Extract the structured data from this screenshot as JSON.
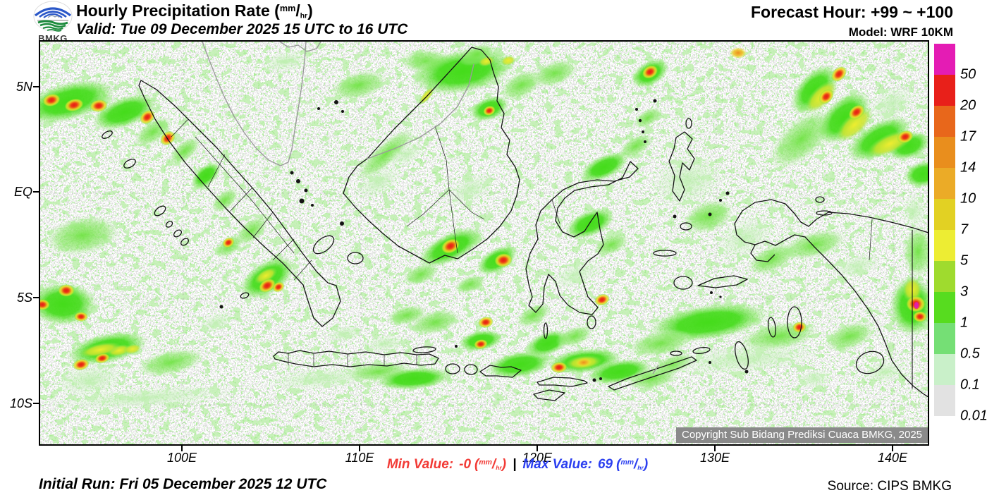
{
  "header": {
    "title": "Hourly Precipitation Rate",
    "valid": "Valid: Tue 09 December 2025 15 UTC to 16 UTC",
    "forecast_hour": "Forecast Hour: +99 ~ +100",
    "model": "Model: WRF 10KM",
    "logo_text": "BMKG"
  },
  "unit": {
    "open": "(",
    "sup": "mm",
    "slash": "/",
    "sub": "hr",
    "close": ")"
  },
  "map": {
    "lat_ticks": [
      "5N",
      "EQ",
      "5S",
      "10S"
    ],
    "lon_ticks": [
      "100E",
      "110E",
      "120E",
      "130E",
      "140E"
    ],
    "copyright": "Copyright Sub Bidang Prediksi Cuaca BMKG, 2025"
  },
  "legend": {
    "items": [
      {
        "label": "50",
        "color": "#E41CB4"
      },
      {
        "label": "20",
        "color": "#E8201A"
      },
      {
        "label": "17",
        "color": "#E8671B"
      },
      {
        "label": "14",
        "color": "#E98E1D"
      },
      {
        "label": "10",
        "color": "#EBAB27"
      },
      {
        "label": "7",
        "color": "#E2D123"
      },
      {
        "label": "5",
        "color": "#EDED33"
      },
      {
        "label": "3",
        "color": "#9FDB2E"
      },
      {
        "label": "1",
        "color": "#57DC1F"
      },
      {
        "label": "0.5",
        "color": "#75DF75"
      },
      {
        "label": "0.1",
        "color": "#C9F0C9"
      },
      {
        "label": "0.01",
        "color": "#E2E2E2"
      }
    ]
  },
  "footer": {
    "min_label": "Min Value:",
    "min_value": "-0",
    "min_color": "#F23A35",
    "separator": "|",
    "max_label": "Max Value:",
    "max_value": "69",
    "max_color": "#2B3FF0",
    "initial_run": "Initial Run: Fri 05 December 2025 12 UTC",
    "source": "Source: CIPS BMKG"
  },
  "chart_data": {
    "type": "heatmap",
    "title": "Hourly Precipitation Rate (mm/hr)",
    "valid_period_utc": "Tue 09 December 2025 15 UTC to 16 UTC",
    "forecast_hour": "+99 ~ +100",
    "model": "WRF 10KM",
    "initial_run_utc": "Fri 05 December 2025 12 UTC",
    "source": "CIPS BMKG",
    "colorbar_levels_mm_per_hr": [
      0.01,
      0.1,
      0.5,
      1,
      3,
      5,
      7,
      10,
      14,
      17,
      20,
      50
    ],
    "colorbar_colors_low_to_high": [
      "#E2E2E2",
      "#C9F0C9",
      "#75DF75",
      "#57DC1F",
      "#9FDB2E",
      "#EDED33",
      "#E2D123",
      "#EBAB27",
      "#E98E1D",
      "#E8671B",
      "#E8201A",
      "#E41CB4"
    ],
    "x_axis_ticks": [
      "100E",
      "110E",
      "120E",
      "130E",
      "140E"
    ],
    "y_axis_ticks": [
      "5N",
      "EQ",
      "5S",
      "10S"
    ],
    "region": "Indonesia",
    "min_value_mm_per_hr": "-0",
    "max_value_mm_per_hr": "69"
  }
}
